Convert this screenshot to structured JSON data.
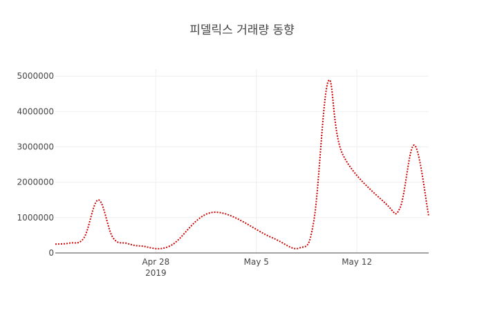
{
  "chart_data": {
    "type": "line",
    "title": "피델릭스 거래량 동향",
    "xlabel": "",
    "ylabel": "",
    "x_range": [
      "2019-04-21",
      "2019-05-17"
    ],
    "ylim": [
      0,
      5200000
    ],
    "y_ticks": [
      0,
      1000000,
      2000000,
      3000000,
      4000000,
      5000000
    ],
    "y_tick_labels": [
      "0",
      "1000000",
      "2000000",
      "3000000",
      "4000000",
      "5000000"
    ],
    "x_ticks": [
      {
        "date": "2019-04-28",
        "label": "Apr 28",
        "sublabel": "2019"
      },
      {
        "date": "2019-05-05",
        "label": "May 5",
        "sublabel": ""
      },
      {
        "date": "2019-05-12",
        "label": "May 12",
        "sublabel": ""
      }
    ],
    "grid": true,
    "series": [
      {
        "color": "#cc0000",
        "line_style": "dotted",
        "points": [
          {
            "x": "2019-04-21",
            "y": 250000
          },
          {
            "x": "2019-04-22",
            "y": 280000
          },
          {
            "x": "2019-04-23",
            "y": 430000
          },
          {
            "x": "2019-04-24",
            "y": 1500000
          },
          {
            "x": "2019-04-25",
            "y": 440000
          },
          {
            "x": "2019-04-26",
            "y": 270000
          },
          {
            "x": "2019-04-27",
            "y": 195000
          },
          {
            "x": "2019-04-29",
            "y": 200000
          },
          {
            "x": "2019-05-02",
            "y": 1150000
          },
          {
            "x": "2019-05-06",
            "y": 450000
          },
          {
            "x": "2019-05-08",
            "y": 140000
          },
          {
            "x": "2019-05-09",
            "y": 900000
          },
          {
            "x": "2019-05-10",
            "y": 4850000
          },
          {
            "x": "2019-05-11",
            "y": 2800000
          },
          {
            "x": "2019-05-14",
            "y": 1400000
          },
          {
            "x": "2019-05-15",
            "y": 1270000
          },
          {
            "x": "2019-05-16",
            "y": 3050000
          },
          {
            "x": "2019-05-17",
            "y": 1050000
          }
        ]
      }
    ]
  }
}
